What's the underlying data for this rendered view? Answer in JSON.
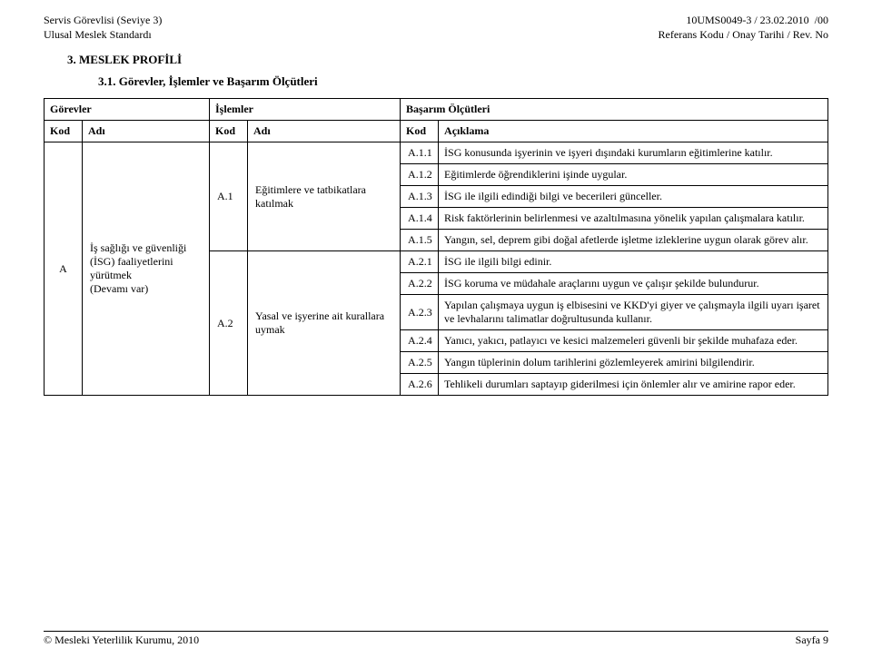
{
  "header": {
    "left_line1": "Servis Görevlisi (Seviye 3)",
    "left_line2": "Ulusal Meslek Standardı",
    "right_line1": "10UMS0049-3 / 23.02.2010  /00",
    "right_line2": "Referans Kodu / Onay Tarihi / Rev. No"
  },
  "titles": {
    "section": "3.   MESLEK PROFİLİ",
    "subsection": "3.1. Görevler, İşlemler ve Başarım Ölçütleri"
  },
  "table": {
    "headers": {
      "gorevler": "Görevler",
      "islemler": "İşlemler",
      "basarim": "Başarım Ölçütleri",
      "kod": "Kod",
      "adi": "Adı",
      "aciklama": "Açıklama"
    },
    "gorev": {
      "kod": "A",
      "adi": "İş sağlığı ve güvenliği (İSG) faaliyetlerini yürütmek\n(Devamı var)"
    },
    "islemler": [
      {
        "kod": "A.1",
        "adi": "Eğitimlere ve tatbikatlara katılmak"
      },
      {
        "kod": "A.2",
        "adi": "Yasal ve işyerine ait kurallara uymak"
      }
    ],
    "rows": [
      {
        "kod": "A.1.1",
        "desc": "İSG konusunda işyerinin ve işyeri dışındaki kurumların eğitimlerine katılır."
      },
      {
        "kod": "A.1.2",
        "desc": "Eğitimlerde öğrendiklerini işinde uygular."
      },
      {
        "kod": "A.1.3",
        "desc": "İSG ile ilgili edindiği bilgi ve becerileri günceller."
      },
      {
        "kod": "A.1.4",
        "desc": "Risk faktörlerinin belirlenmesi ve azaltılmasına yönelik yapılan çalışmalara katılır."
      },
      {
        "kod": "A.1.5",
        "desc": "Yangın, sel, deprem gibi doğal afetlerde işletme izleklerine uygun olarak görev alır."
      },
      {
        "kod": "A.2.1",
        "desc": "İSG ile ilgili bilgi edinir."
      },
      {
        "kod": "A.2.2",
        "desc": "İSG koruma ve müdahale araçlarını uygun ve çalışır şekilde bulundurur."
      },
      {
        "kod": "A.2.3",
        "desc": "Yapılan çalışmaya uygun iş elbisesini ve KKD'yi giyer ve çalışmayla ilgili uyarı işaret ve levhalarını talimatlar doğrultusunda kullanır."
      },
      {
        "kod": "A.2.4",
        "desc": "Yanıcı, yakıcı, patlayıcı ve kesici malzemeleri güvenli bir şekilde muhafaza eder."
      },
      {
        "kod": "A.2.5",
        "desc": "Yangın tüplerinin dolum tarihlerini gözlemleyerek amirini bilgilendirir."
      },
      {
        "kod": "A.2.6",
        "desc": "Tehlikeli durumları saptayıp giderilmesi için önlemler alır ve amirine rapor eder."
      }
    ]
  },
  "footer": {
    "left": "© Mesleki Yeterlilik Kurumu, 2010",
    "right": "Sayfa 9"
  }
}
